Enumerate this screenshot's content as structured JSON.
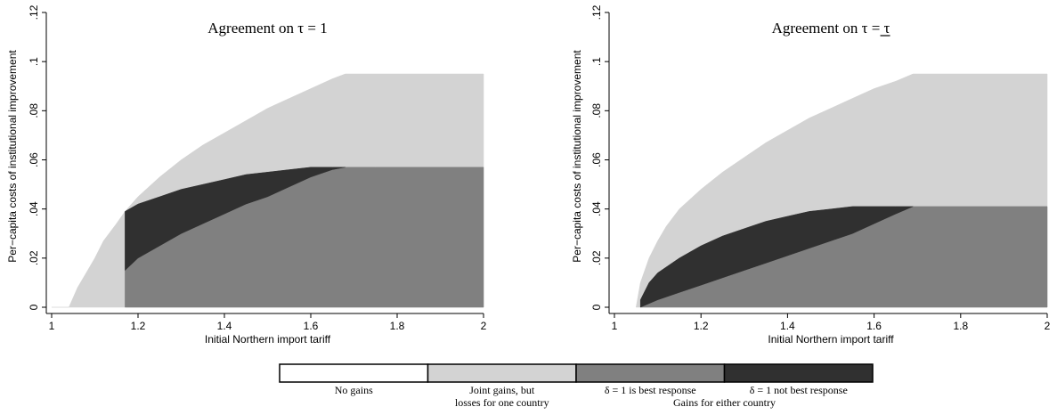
{
  "chart_data": [
    {
      "type": "area",
      "title": "Agreement on τ = 1",
      "xlabel": "Initial Northern import tariff",
      "ylabel": "Per−capita costs of institutional improvement",
      "xlim": [
        1,
        2
      ],
      "ylim": [
        0,
        0.12
      ],
      "xticks": [
        "1",
        "1.2",
        "1.4",
        "1.6",
        "1.8",
        "2"
      ],
      "yticks": [
        "0",
        ".02",
        ".04",
        ".06",
        ".08",
        ".1",
        ".12"
      ],
      "grid": false,
      "series": [
        {
          "category": "Joint gains, but losses for one country",
          "color": "#d3d3d3",
          "upper": {
            "x": [
              1.0,
              1.04,
              1.06,
              1.08,
              1.1,
              1.12,
              1.15,
              1.17,
              1.2,
              1.25,
              1.3,
              1.35,
              1.4,
              1.45,
              1.5,
              1.55,
              1.6,
              1.65,
              1.68,
              1.75,
              1.85,
              2.0
            ],
            "y": [
              0.0,
              0.0,
              0.008,
              0.014,
              0.02,
              0.027,
              0.034,
              0.039,
              0.045,
              0.053,
              0.06,
              0.066,
              0.071,
              0.076,
              0.081,
              0.085,
              0.089,
              0.093,
              0.095,
              0.095,
              0.095,
              0.095
            ]
          }
        },
        {
          "category": "δ = 1 is best response",
          "color": "#808080",
          "upper": {
            "x": [
              1.17,
              1.2,
              1.25,
              1.3,
              1.35,
              1.4,
              1.45,
              1.5,
              1.55,
              1.6,
              1.65,
              1.68,
              1.75,
              1.85,
              2.0
            ],
            "y": [
              0.015,
              0.02,
              0.025,
              0.03,
              0.034,
              0.038,
              0.042,
              0.045,
              0.049,
              0.053,
              0.056,
              0.057,
              0.057,
              0.057,
              0.057
            ]
          }
        },
        {
          "category": "δ = 1 not best response",
          "color": "#303030",
          "lower": {
            "x": [
              1.17,
              1.2,
              1.25,
              1.3,
              1.35,
              1.4,
              1.45,
              1.5,
              1.55,
              1.6,
              1.65,
              1.68
            ],
            "y": [
              0.015,
              0.02,
              0.025,
              0.03,
              0.034,
              0.038,
              0.042,
              0.045,
              0.049,
              0.053,
              0.056,
              0.057
            ]
          },
          "upper": {
            "x": [
              1.17,
              1.2,
              1.25,
              1.3,
              1.35,
              1.4,
              1.45,
              1.5,
              1.55,
              1.6,
              1.65,
              1.68
            ],
            "y": [
              0.039,
              0.042,
              0.045,
              0.048,
              0.05,
              0.052,
              0.054,
              0.055,
              0.056,
              0.057,
              0.057,
              0.057
            ]
          }
        }
      ]
    },
    {
      "type": "area",
      "title": "Agreement on τ = τ",
      "xlabel": "Initial Northern import tariff",
      "ylabel": "Per−capita costs of institutional improvement",
      "xlim": [
        1,
        2
      ],
      "ylim": [
        0,
        0.12
      ],
      "xticks": [
        "1",
        "1.2",
        "1.4",
        "1.6",
        "1.8",
        "2"
      ],
      "yticks": [
        "0",
        ".02",
        ".04",
        ".06",
        ".08",
        ".1",
        ".12"
      ],
      "grid": false,
      "series": [
        {
          "category": "Joint gains, but losses for one country",
          "color": "#d3d3d3",
          "upper": {
            "x": [
              1.05,
              1.06,
              1.08,
              1.1,
              1.12,
              1.15,
              1.2,
              1.25,
              1.3,
              1.35,
              1.4,
              1.45,
              1.5,
              1.55,
              1.6,
              1.65,
              1.69,
              1.75,
              1.85,
              2.0
            ],
            "y": [
              0.0,
              0.01,
              0.02,
              0.027,
              0.033,
              0.04,
              0.048,
              0.055,
              0.061,
              0.067,
              0.072,
              0.077,
              0.081,
              0.085,
              0.089,
              0.092,
              0.095,
              0.095,
              0.095,
              0.095
            ]
          }
        },
        {
          "category": "δ = 1 is best response",
          "color": "#808080",
          "upper": {
            "x": [
              1.06,
              1.1,
              1.15,
              1.2,
              1.25,
              1.3,
              1.35,
              1.4,
              1.45,
              1.5,
              1.55,
              1.6,
              1.65,
              1.69,
              1.75,
              1.85,
              2.0
            ],
            "y": [
              0.0,
              0.003,
              0.006,
              0.009,
              0.012,
              0.015,
              0.018,
              0.021,
              0.024,
              0.027,
              0.03,
              0.034,
              0.038,
              0.041,
              0.041,
              0.041,
              0.041
            ]
          }
        },
        {
          "category": "δ = 1 not best response",
          "color": "#303030",
          "lower": {
            "x": [
              1.06,
              1.1,
              1.15,
              1.2,
              1.25,
              1.3,
              1.35,
              1.4,
              1.45,
              1.5,
              1.55,
              1.6,
              1.65,
              1.69
            ],
            "y": [
              0.0,
              0.003,
              0.006,
              0.009,
              0.012,
              0.015,
              0.018,
              0.021,
              0.024,
              0.027,
              0.03,
              0.034,
              0.038,
              0.041
            ]
          },
          "upper": {
            "x": [
              1.06,
              1.08,
              1.1,
              1.15,
              1.2,
              1.25,
              1.3,
              1.35,
              1.4,
              1.45,
              1.5,
              1.55,
              1.6,
              1.65,
              1.69
            ],
            "y": [
              0.003,
              0.01,
              0.014,
              0.02,
              0.025,
              0.029,
              0.032,
              0.035,
              0.037,
              0.039,
              0.04,
              0.041,
              0.041,
              0.041,
              0.041
            ]
          }
        }
      ]
    }
  ],
  "legend": {
    "items": [
      {
        "label": "No gains",
        "color": "#ffffff"
      },
      {
        "label": "Joint gains, but",
        "label2": "losses for one country",
        "color": "#d3d3d3"
      },
      {
        "label": "δ = 1 is best response",
        "color": "#808080"
      },
      {
        "label": "δ = 1 not best response",
        "color": "#303030"
      }
    ],
    "group_label": "Gains for either country"
  }
}
